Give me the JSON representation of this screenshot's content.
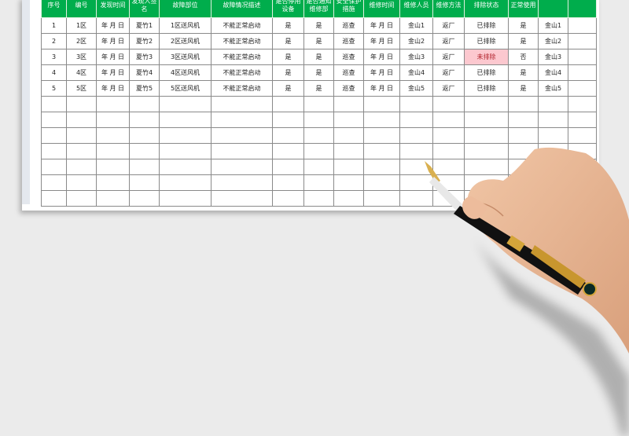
{
  "table": {
    "headers": [
      "序号",
      "编号",
      "发现时间",
      "发现人签名",
      "故障部位",
      "故障情况描述",
      "是否停用设备",
      "是否通知维修部",
      "安全保护措施",
      "维修时间",
      "维修人员",
      "维修方法",
      "排除状态",
      "正常使用",
      "",
      ""
    ],
    "rows": [
      [
        "1",
        "1区",
        "年 月 日",
        "夏竹1",
        "1区送风机",
        "不能正常启动",
        "是",
        "是",
        "巡查",
        "年 月 日",
        "金山1",
        "返厂",
        "已排除",
        "是",
        "金山1",
        ""
      ],
      [
        "2",
        "2区",
        "年 月 日",
        "夏竹2",
        "2区送风机",
        "不能正常启动",
        "是",
        "是",
        "巡查",
        "年 月 日",
        "金山2",
        "返厂",
        "已排除",
        "是",
        "金山2",
        ""
      ],
      [
        "3",
        "3区",
        "年 月 日",
        "夏竹3",
        "3区送风机",
        "不能正常启动",
        "是",
        "是",
        "巡查",
        "年 月 日",
        "金山3",
        "返厂",
        "未排除",
        "否",
        "金山3",
        ""
      ],
      [
        "4",
        "4区",
        "年 月 日",
        "夏竹4",
        "4区送风机",
        "不能正常启动",
        "是",
        "是",
        "巡查",
        "年 月 日",
        "金山4",
        "返厂",
        "已排除",
        "是",
        "金山4",
        ""
      ],
      [
        "5",
        "5区",
        "年 月 日",
        "夏竹5",
        "5区送风机",
        "不能正常启动",
        "是",
        "是",
        "巡查",
        "年 月 日",
        "金山5",
        "返厂",
        "已排除",
        "是",
        "金山5",
        ""
      ]
    ],
    "empty_rows": 7,
    "highlight_value": "未排除"
  },
  "colors": {
    "header": "#00ad4c",
    "alert_bg": "#fcc8cf",
    "alert_text": "#b0202a"
  }
}
